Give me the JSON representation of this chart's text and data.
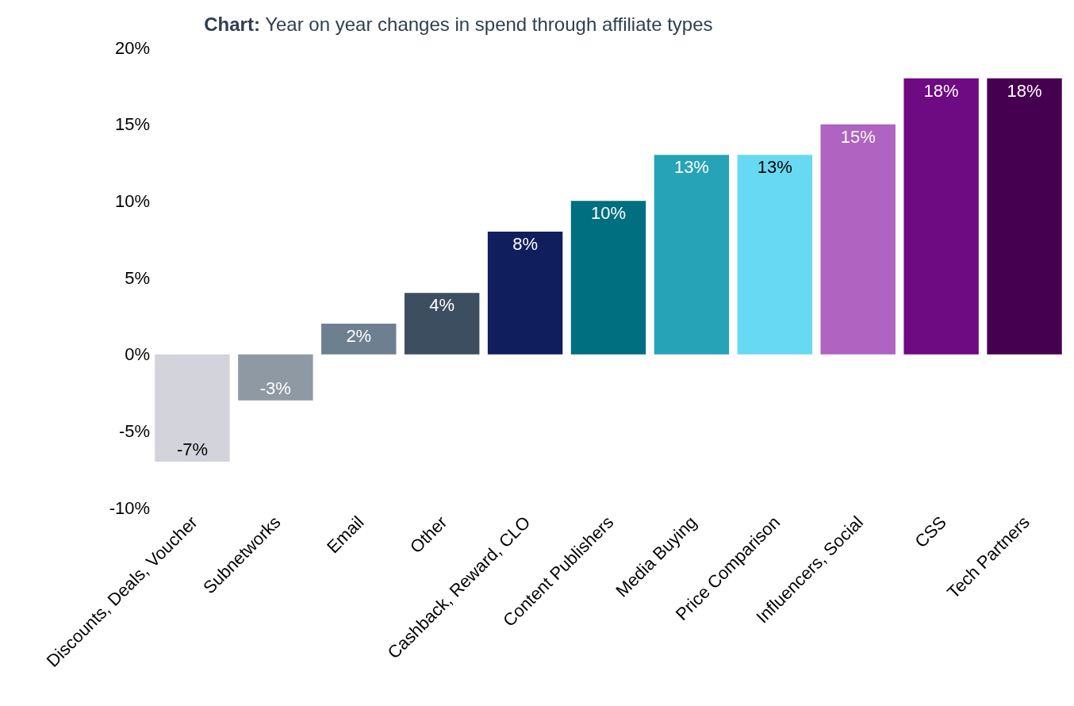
{
  "chart_data": {
    "type": "bar",
    "title": "Chart: Year on year changes in spend through affiliate types",
    "categories": [
      "Discounts, Deals, Voucher",
      "Subnetworks",
      "Email",
      "Other",
      "Cashback, Reward, CLO",
      "Content Publishers",
      "Media Buying",
      "Price Comparison",
      "Influencers, Social",
      "CSS",
      "Tech Partners"
    ],
    "values": [
      -7,
      -3,
      2,
      4,
      8,
      10,
      13,
      13,
      15,
      18,
      18
    ],
    "value_labels": [
      "-7%",
      "-3%",
      "2%",
      "4%",
      "8%",
      "10%",
      "13%",
      "13%",
      "15%",
      "18%",
      "18%"
    ],
    "colors": [
      "#d3d3dc",
      "#8e99a3",
      "#6e7f90",
      "#3d4e60",
      "#111e5e",
      "#006f80",
      "#27a3b8",
      "#67d9f2",
      "#b063c0",
      "#6e0a82",
      "#450050"
    ],
    "ylim": [
      -10,
      20
    ],
    "yticks": [
      {
        "value": -10,
        "label": "-10%"
      },
      {
        "value": -5,
        "label": "-5%"
      },
      {
        "value": 0,
        "label": "0%"
      },
      {
        "value": 5,
        "label": "5%"
      },
      {
        "value": 10,
        "label": "10%"
      },
      {
        "value": 15,
        "label": "15%"
      },
      {
        "value": 20,
        "label": "20%"
      }
    ]
  }
}
